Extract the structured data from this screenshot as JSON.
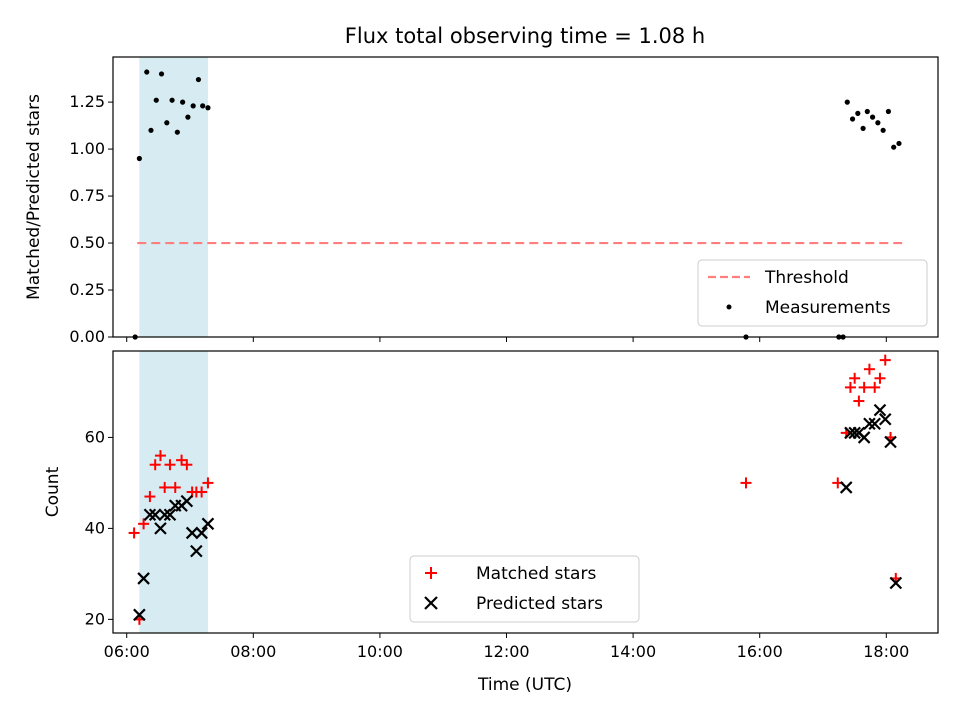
{
  "chart_data": [
    {
      "type": "scatter",
      "title": "Flux total observing time = 1.08 h",
      "ylabel": "Matched/Predicted stars",
      "xlim": [
        "05:47",
        "18:49"
      ],
      "ylim": [
        0,
        1.49
      ],
      "yticks": [
        0.0,
        0.25,
        0.5,
        0.75,
        1.0,
        1.25
      ],
      "ytick_labels": [
        "0.00",
        "0.25",
        "0.50",
        "0.75",
        "1.00",
        "1.25"
      ],
      "shaded_span": [
        "06:12",
        "07:17"
      ],
      "threshold": {
        "name": "Threshold",
        "value": 0.5,
        "from": "06:10",
        "to": "18:15",
        "color": "#ff7f7f"
      },
      "measurements": {
        "name": "Measurements",
        "x": [
          "06:08",
          "06:12",
          "06:19",
          "06:23",
          "06:28",
          "06:33",
          "06:38",
          "06:43",
          "06:48",
          "06:53",
          "06:58",
          "07:03",
          "07:08",
          "07:12",
          "07:17",
          "15:47",
          "17:15",
          "17:19",
          "17:23",
          "17:28",
          "17:33",
          "17:38",
          "17:42",
          "17:47",
          "17:52",
          "17:57",
          "18:02",
          "18:07",
          "18:12"
        ],
        "y": [
          0.0,
          0.95,
          1.41,
          1.1,
          1.26,
          1.4,
          1.14,
          1.26,
          1.09,
          1.25,
          1.17,
          1.23,
          1.37,
          1.23,
          1.22,
          0.0,
          0.0,
          0.0,
          1.25,
          1.16,
          1.19,
          1.11,
          1.2,
          1.17,
          1.14,
          1.1,
          1.2,
          1.01,
          1.03
        ]
      }
    },
    {
      "type": "scatter",
      "xlabel": "Time (UTC)",
      "ylabel": "Count",
      "xlim": [
        "05:47",
        "18:49"
      ],
      "ylim": [
        17,
        79
      ],
      "xtick_labels": [
        "06:00",
        "08:00",
        "10:00",
        "12:00",
        "14:00",
        "16:00",
        "18:00"
      ],
      "yticks": [
        20,
        40,
        60
      ],
      "ytick_labels": [
        "20",
        "40",
        "60"
      ],
      "shaded_span": [
        "06:12",
        "07:17"
      ],
      "series": [
        {
          "name": "Matched stars",
          "marker": "plus",
          "color": "#ff0000",
          "x": [
            "06:07",
            "06:12",
            "06:16",
            "06:22",
            "06:27",
            "06:32",
            "06:36",
            "06:41",
            "06:46",
            "06:52",
            "06:57",
            "07:02",
            "07:06",
            "07:11",
            "07:17",
            "15:47",
            "17:14",
            "17:22",
            "17:26",
            "17:30",
            "17:34",
            "17:39",
            "17:44",
            "17:49",
            "17:54",
            "17:59",
            "18:04",
            "18:09",
            "18:14"
          ],
          "y": [
            39,
            20,
            41,
            47,
            54,
            56,
            49,
            54,
            49,
            55,
            54,
            48,
            48,
            48,
            50,
            50,
            50,
            61,
            71,
            73,
            68,
            71,
            75,
            71,
            73,
            77,
            60,
            29,
            null
          ]
        },
        {
          "name": "Predicted stars",
          "marker": "x",
          "color": "#000000",
          "x": [
            "06:12",
            "06:16",
            "06:22",
            "06:27",
            "06:32",
            "06:36",
            "06:41",
            "06:46",
            "06:52",
            "06:57",
            "07:02",
            "07:06",
            "07:11",
            "07:17",
            "17:22",
            "17:26",
            "17:30",
            "17:34",
            "17:39",
            "17:44",
            "17:49",
            "17:54",
            "17:59",
            "18:04",
            "18:09",
            "18:14"
          ],
          "y": [
            21,
            29,
            43,
            43,
            40,
            43,
            43,
            45,
            45,
            46,
            39,
            35,
            39,
            41,
            49,
            61,
            61,
            61,
            60,
            63,
            63,
            66,
            64,
            59,
            28,
            null
          ]
        }
      ]
    }
  ]
}
